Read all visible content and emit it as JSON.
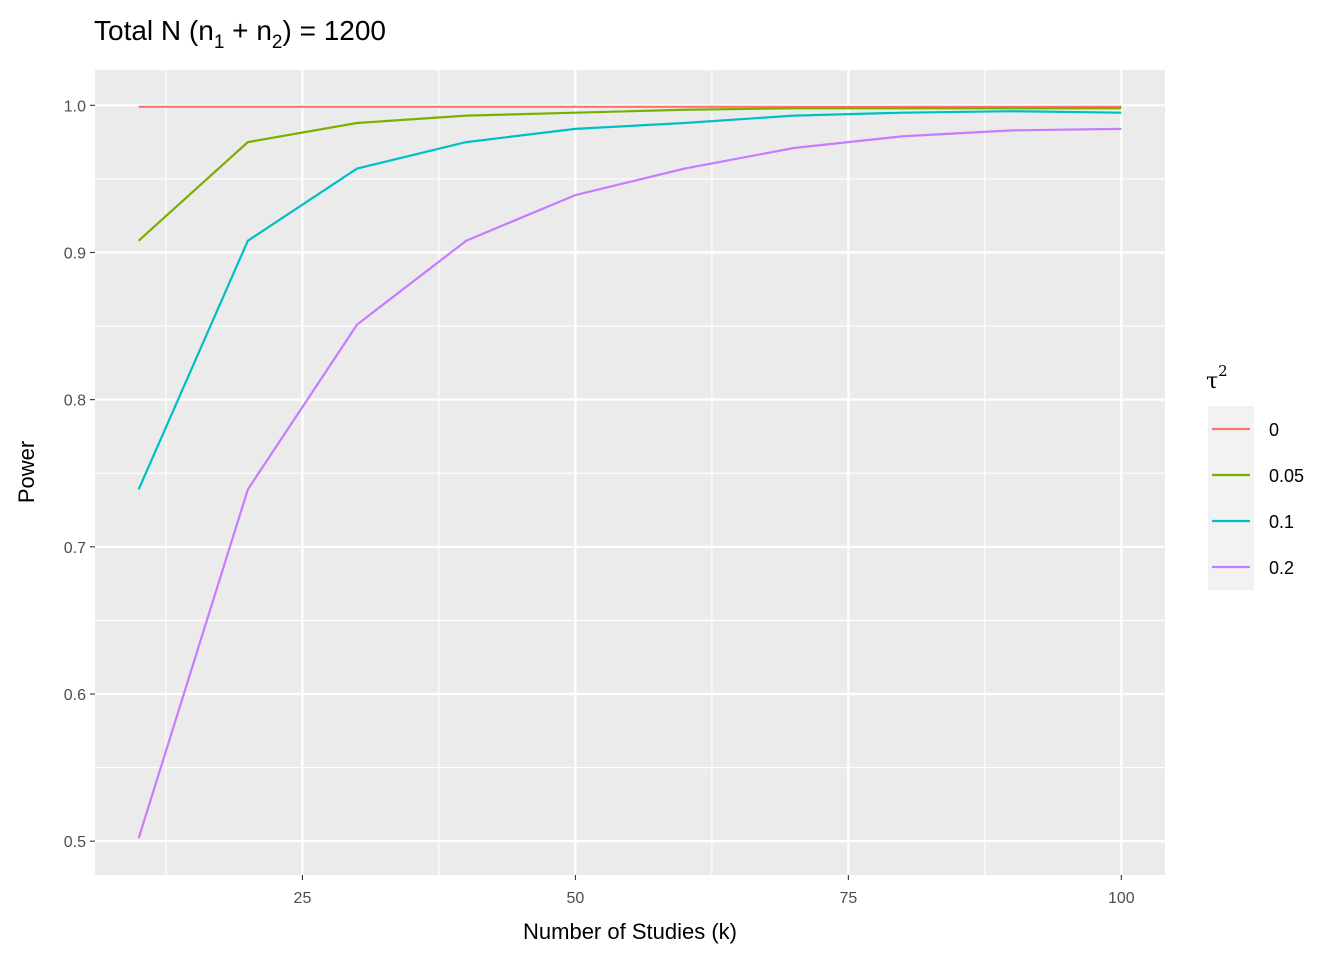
{
  "chart_data": {
    "type": "line",
    "title": {
      "prefix": "Total N (n",
      "sub1": "1",
      "mid": " + n",
      "sub2": "2",
      "suffix": ") = 1200"
    },
    "xlabel": "Number of Studies (k)",
    "ylabel": "Power",
    "xlim": [
      6,
      104
    ],
    "ylim": [
      0.477,
      1.024
    ],
    "x_ticks": [
      25,
      50,
      75,
      100
    ],
    "x_tick_labels": [
      "25",
      "50",
      "75",
      "100"
    ],
    "y_ticks": [
      0.5,
      0.6,
      0.7,
      0.8,
      0.9,
      1.0
    ],
    "y_tick_labels": [
      "0.5",
      "0.6",
      "0.7",
      "0.8",
      "0.9",
      "1.0"
    ],
    "grid": true,
    "legend": {
      "title_base": "τ",
      "title_sup": "2",
      "placement": "right"
    },
    "x": [
      10,
      20,
      30,
      40,
      50,
      60,
      70,
      80,
      90,
      100
    ],
    "series": [
      {
        "name": "0",
        "color": "#F8766D",
        "values": [
          0.999,
          0.999,
          0.999,
          0.999,
          0.999,
          0.999,
          0.999,
          0.999,
          0.999,
          0.999
        ]
      },
      {
        "name": "0.05",
        "color": "#7CAE00",
        "values": [
          0.908,
          0.975,
          0.988,
          0.993,
          0.995,
          0.997,
          0.998,
          0.998,
          0.998,
          0.998
        ]
      },
      {
        "name": "0.1",
        "color": "#00BFC4",
        "values": [
          0.739,
          0.908,
          0.957,
          0.975,
          0.984,
          0.988,
          0.993,
          0.995,
          0.996,
          0.995
        ]
      },
      {
        "name": "0.2",
        "color": "#C77CFF",
        "values": [
          0.502,
          0.739,
          0.851,
          0.908,
          0.939,
          0.957,
          0.971,
          0.979,
          0.983,
          0.984
        ]
      }
    ]
  }
}
